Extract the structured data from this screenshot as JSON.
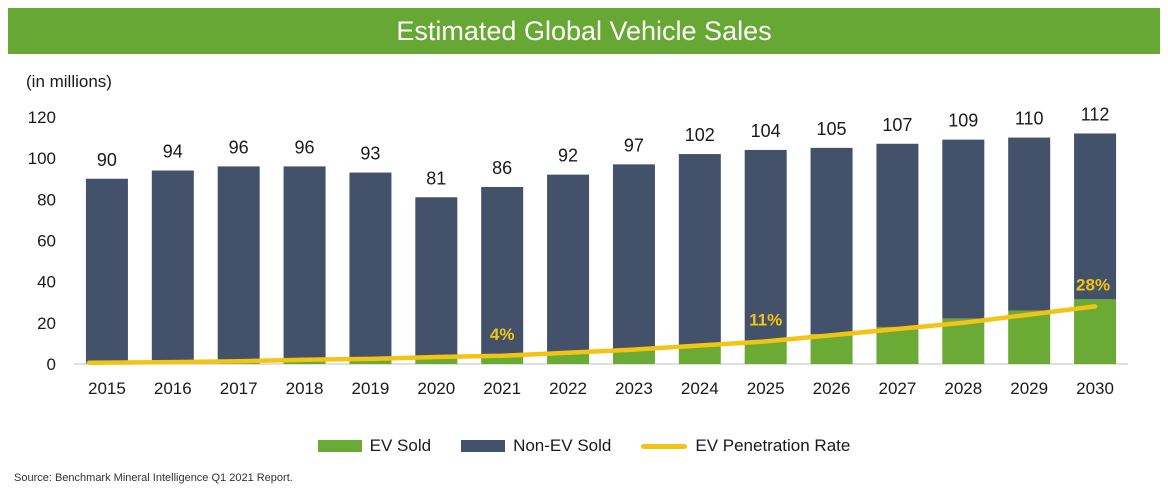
{
  "title": "Estimated Global Vehicle Sales",
  "unit_note": "(in millions)",
  "source": "Source: Benchmark Mineral Intelligence Q1 2021 Report.",
  "colors": {
    "ev": "#6aaa35",
    "non_ev": "#44516b",
    "rate": "#f2c413",
    "title_bg": "#66a833"
  },
  "legend": {
    "ev": "EV Sold",
    "non_ev": "Non-EV Sold",
    "rate": "EV Penetration Rate"
  },
  "chart_data": {
    "type": "bar",
    "stacked": true,
    "categories": [
      "2015",
      "2016",
      "2017",
      "2018",
      "2019",
      "2020",
      "2021",
      "2022",
      "2023",
      "2024",
      "2025",
      "2026",
      "2027",
      "2028",
      "2029",
      "2030"
    ],
    "ylim": [
      0,
      120
    ],
    "yticks": [
      0,
      20,
      40,
      60,
      80,
      100,
      120
    ],
    "grid": false,
    "legend_position": "bottom",
    "totals": [
      90,
      94,
      96,
      96,
      93,
      81,
      86,
      92,
      97,
      102,
      104,
      105,
      107,
      109,
      110,
      112
    ],
    "series": [
      {
        "name": "EV Sold",
        "values": [
          0.5,
          0.8,
          1.2,
          2.0,
          2.2,
          3.0,
          3.4,
          5.0,
          7.0,
          9.0,
          11.4,
          14.5,
          18.0,
          22.0,
          26.0,
          31.4
        ]
      },
      {
        "name": "Non-EV Sold",
        "values": [
          89.5,
          93.2,
          94.8,
          94.0,
          90.8,
          78.0,
          82.6,
          87.0,
          90.0,
          93.0,
          92.6,
          90.5,
          89.0,
          87.0,
          84.0,
          80.6
        ]
      }
    ],
    "line_series": {
      "name": "EV Penetration Rate",
      "values": [
        0.6,
        0.9,
        1.3,
        2.1,
        2.5,
        3.4,
        4,
        5.5,
        7,
        9,
        11,
        14,
        17,
        20,
        24,
        28
      ],
      "labels": [
        {
          "index": 6,
          "text": "4%"
        },
        {
          "index": 10,
          "text": "11%"
        },
        {
          "index": 15,
          "text": "28%"
        }
      ]
    }
  }
}
